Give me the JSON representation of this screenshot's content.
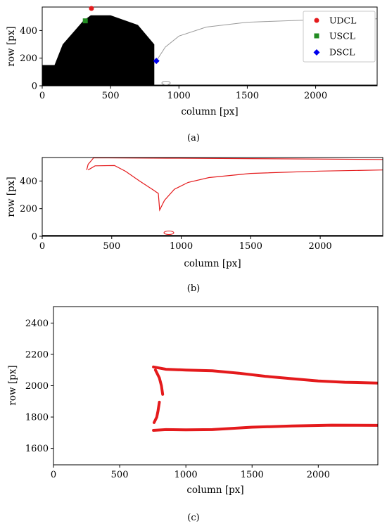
{
  "chart_data": [
    {
      "type": "scatter",
      "panel_label": "(a)",
      "xlabel": "column [px]",
      "ylabel": "row [px]",
      "xlim": [
        0,
        2450
      ],
      "ylim": [
        570,
        0
      ],
      "xticks": [
        0,
        500,
        1000,
        1500,
        2000
      ],
      "yticks": [
        0,
        200,
        400
      ],
      "legend_position": "top-right",
      "colors": {
        "UDCL": "#e41a1c",
        "USCL": "#228b22",
        "DSCL": "#0000ee",
        "mask": "#000000",
        "outline": "#9a9a9a"
      },
      "legend": [
        {
          "name": "UDCL",
          "marker": "circle",
          "color": "#e41a1c"
        },
        {
          "name": "USCL",
          "marker": "square",
          "color": "#228b22"
        },
        {
          "name": "DSCL",
          "marker": "diamond",
          "color": "#0000ee"
        }
      ],
      "points": {
        "UDCL": [
          360,
          560
        ],
        "USCL": [
          315,
          470
        ],
        "DSCL": [
          835,
          180
        ]
      },
      "mask_outline": [
        [
          0,
          0
        ],
        [
          820,
          0
        ],
        [
          820,
          300
        ],
        [
          700,
          440
        ],
        [
          500,
          510
        ],
        [
          355,
          510
        ],
        [
          300,
          470
        ],
        [
          150,
          300
        ],
        [
          90,
          150
        ],
        [
          0,
          150
        ]
      ],
      "contour": [
        [
          835,
          180
        ],
        [
          900,
          280
        ],
        [
          1000,
          360
        ],
        [
          1200,
          425
        ],
        [
          1500,
          460
        ],
        [
          2000,
          478
        ],
        [
          2450,
          485
        ]
      ]
    },
    {
      "type": "line",
      "panel_label": "(b)",
      "xlabel": "column [px]",
      "ylabel": "row [px]",
      "xlim": [
        0,
        2450
      ],
      "ylim": [
        570,
        0
      ],
      "xticks": [
        0,
        500,
        1000,
        1500,
        2000
      ],
      "yticks": [
        0,
        200,
        400
      ],
      "colors": {
        "line": "#e41a1c"
      },
      "upper_contour": [
        [
          330,
          480
        ],
        [
          380,
          510
        ],
        [
          520,
          512
        ],
        [
          600,
          470
        ],
        [
          700,
          400
        ],
        [
          800,
          335
        ],
        [
          835,
          310
        ],
        [
          845,
          190
        ],
        [
          880,
          260
        ],
        [
          950,
          340
        ],
        [
          1050,
          390
        ],
        [
          1200,
          425
        ],
        [
          1500,
          455
        ],
        [
          2000,
          472
        ],
        [
          2450,
          480
        ]
      ],
      "lower_contour": [
        [
          320,
          480
        ],
        [
          330,
          520
        ],
        [
          370,
          568
        ],
        [
          900,
          565
        ],
        [
          1500,
          562
        ],
        [
          2450,
          556
        ]
      ]
    },
    {
      "type": "scatter",
      "panel_label": "(c)",
      "xlabel": "column [px]",
      "ylabel": "row [px]",
      "xlim": [
        0,
        2450
      ],
      "ylim": [
        2505,
        1495
      ],
      "xticks": [
        0,
        500,
        1000,
        1500,
        2000
      ],
      "yticks": [
        1600,
        1800,
        2000,
        2200,
        2400
      ],
      "colors": {
        "line": "#e41a1c"
      },
      "top_edge": [
        [
          755,
          1715
        ],
        [
          850,
          1720
        ],
        [
          1000,
          1718
        ],
        [
          1200,
          1720
        ],
        [
          1500,
          1735
        ],
        [
          1800,
          1743
        ],
        [
          2100,
          1748
        ],
        [
          2450,
          1747
        ]
      ],
      "bottom_edge": [
        [
          755,
          2120
        ],
        [
          850,
          2105
        ],
        [
          1000,
          2100
        ],
        [
          1200,
          2095
        ],
        [
          1400,
          2080
        ],
        [
          1600,
          2060
        ],
        [
          1800,
          2045
        ],
        [
          2000,
          2030
        ],
        [
          2200,
          2022
        ],
        [
          2450,
          2017
        ]
      ],
      "left_edge_upper": [
        [
          760,
          1765
        ],
        [
          780,
          1800
        ],
        [
          790,
          1840
        ],
        [
          800,
          1895
        ]
      ],
      "left_edge_lower": [
        [
          825,
          1945
        ],
        [
          815,
          2000
        ],
        [
          800,
          2050
        ],
        [
          770,
          2100
        ]
      ]
    }
  ]
}
